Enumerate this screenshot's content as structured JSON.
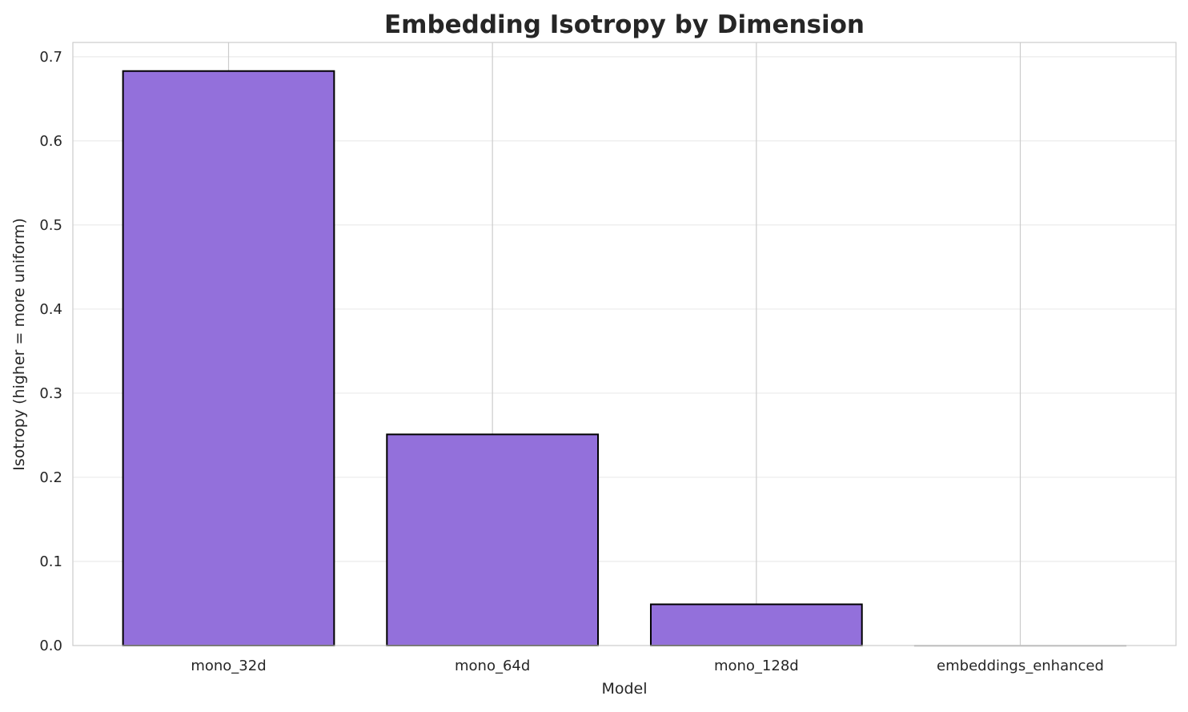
{
  "chart_data": {
    "type": "bar",
    "title": "Embedding Isotropy by Dimension",
    "xlabel": "Model",
    "ylabel": "Isotropy (higher = more uniform)",
    "categories": [
      "mono_32d",
      "mono_64d",
      "mono_128d",
      "embeddings_enhanced"
    ],
    "values": [
      0.683,
      0.251,
      0.049,
      0.0
    ],
    "ylim": [
      0,
      0.717
    ],
    "yticks": [
      0.0,
      0.1,
      0.2,
      0.3,
      0.4,
      0.5,
      0.6,
      0.7
    ],
    "ytick_labels": [
      "0.0",
      "0.1",
      "0.2",
      "0.3",
      "0.4",
      "0.5",
      "0.6",
      "0.7"
    ],
    "grid": true,
    "colors": {
      "bar": "#9370db",
      "edge": "#000000",
      "grid": "#ebebeb",
      "spine": "#cccccc"
    }
  }
}
